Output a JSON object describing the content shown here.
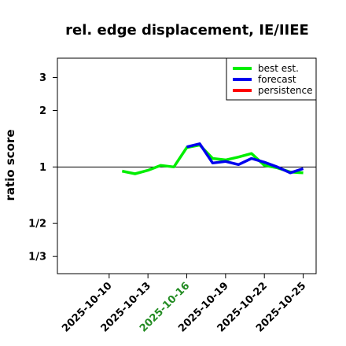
{
  "chart_data": {
    "type": "line",
    "title": "rel. edge displacement, IE/IIEE",
    "xlabel": "",
    "ylabel": "ratio score",
    "y_scale": "log",
    "ylim": [
      0.27,
      3.8
    ],
    "xlim": [
      "2025-10-06",
      "2025-10-26"
    ],
    "yticks": [
      {
        "value": 0.3333,
        "label": "1/3"
      },
      {
        "value": 0.5,
        "label": "1/2"
      },
      {
        "value": 1,
        "label": "1"
      },
      {
        "value": 2,
        "label": "2"
      },
      {
        "value": 3,
        "label": "3"
      }
    ],
    "xticks": [
      {
        "date": "2025-10-10",
        "label": "2025-10-10",
        "color": "#000000"
      },
      {
        "date": "2025-10-13",
        "label": "2025-10-13",
        "color": "#000000"
      },
      {
        "date": "2025-10-16",
        "label": "2025-10-16",
        "color": "#228B22"
      },
      {
        "date": "2025-10-19",
        "label": "2025-10-19",
        "color": "#000000"
      },
      {
        "date": "2025-10-22",
        "label": "2025-10-22",
        "color": "#000000"
      },
      {
        "date": "2025-10-25",
        "label": "2025-10-25",
        "color": "#000000"
      }
    ],
    "reference_line": 1,
    "grid": false,
    "legend_position": "top-right",
    "series": [
      {
        "name": "best est.",
        "color": "#00ee00",
        "points": [
          {
            "x": "2025-10-11",
            "y": 0.95
          },
          {
            "x": "2025-10-12",
            "y": 0.92
          },
          {
            "x": "2025-10-13",
            "y": 0.96
          },
          {
            "x": "2025-10-14",
            "y": 1.02
          },
          {
            "x": "2025-10-15",
            "y": 1.0
          },
          {
            "x": "2025-10-16",
            "y": 1.27
          },
          {
            "x": "2025-10-17",
            "y": 1.31
          },
          {
            "x": "2025-10-18",
            "y": 1.11
          },
          {
            "x": "2025-10-19",
            "y": 1.09
          },
          {
            "x": "2025-10-20",
            "y": 1.13
          },
          {
            "x": "2025-10-21",
            "y": 1.18
          },
          {
            "x": "2025-10-22",
            "y": 1.02
          },
          {
            "x": "2025-10-23",
            "y": 0.99
          },
          {
            "x": "2025-10-24",
            "y": 0.94
          },
          {
            "x": "2025-10-25",
            "y": 0.93
          }
        ]
      },
      {
        "name": "forecast",
        "color": "#0000ee",
        "points": [
          {
            "x": "2025-10-16",
            "y": 1.28
          },
          {
            "x": "2025-10-17",
            "y": 1.33
          },
          {
            "x": "2025-10-18",
            "y": 1.05
          },
          {
            "x": "2025-10-19",
            "y": 1.07
          },
          {
            "x": "2025-10-20",
            "y": 1.03
          },
          {
            "x": "2025-10-21",
            "y": 1.11
          },
          {
            "x": "2025-10-22",
            "y": 1.06
          },
          {
            "x": "2025-10-23",
            "y": 1.0
          },
          {
            "x": "2025-10-24",
            "y": 0.93
          },
          {
            "x": "2025-10-25",
            "y": 0.98
          }
        ]
      },
      {
        "name": "persistence",
        "color": "#ff0000",
        "points": []
      }
    ]
  }
}
